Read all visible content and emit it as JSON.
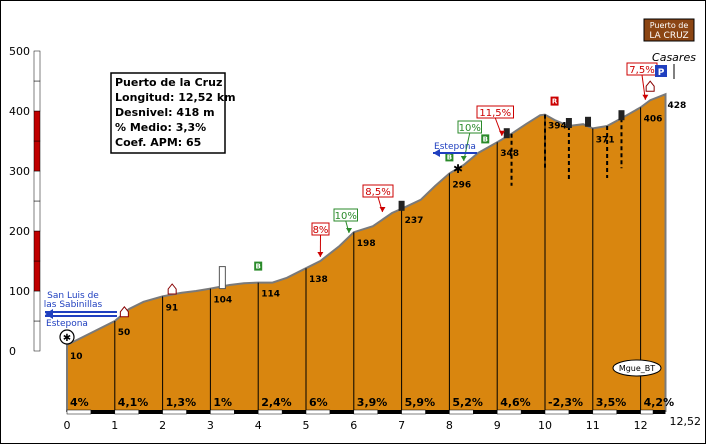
{
  "chart_data": {
    "type": "area",
    "title": "Puerto de LA CRUZ",
    "title_lines": [
      "Puerto de",
      "LA CRUZ"
    ],
    "ylim": [
      0,
      500
    ],
    "xlim": [
      0,
      12.52
    ],
    "y_ticks": [
      0,
      100,
      200,
      300,
      400,
      500
    ],
    "y_tick_labels": [
      "0",
      "100",
      "200",
      "300",
      "400",
      "500"
    ],
    "x_ticks": [
      0,
      1,
      2,
      3,
      4,
      5,
      6,
      7,
      8,
      9,
      10,
      11,
      12,
      12.52
    ],
    "x_tick_labels": [
      "0",
      "1",
      "2",
      "3",
      "4",
      "5",
      "6",
      "7",
      "8",
      "9",
      "10",
      "11",
      "12",
      "12,52"
    ],
    "km_points": [
      0,
      1,
      2,
      3,
      4,
      5,
      6,
      7,
      8,
      9,
      10,
      11,
      12,
      12.52
    ],
    "altitudes": [
      10,
      50,
      91,
      104,
      114,
      138,
      198,
      237,
      296,
      348,
      394,
      371,
      406,
      428
    ],
    "altitude_labels": [
      "10",
      "50",
      "91",
      "104",
      "114",
      "138",
      "198",
      "237",
      "296",
      "348",
      "394",
      "371",
      "406",
      "428"
    ],
    "segment_gradients": [
      "4%",
      "4,1%",
      "1,3%",
      "1%",
      "2,4%",
      "6%",
      "3,9%",
      "5,9%",
      "5,2%",
      "4,6%",
      "-2,3%",
      "3,5%",
      "4,2%"
    ],
    "profile": [
      [
        0,
        10
      ],
      [
        0.5,
        30
      ],
      [
        1,
        50
      ],
      [
        1.3,
        70
      ],
      [
        1.6,
        82
      ],
      [
        2,
        91
      ],
      [
        2.4,
        97
      ],
      [
        2.7,
        100
      ],
      [
        3,
        104
      ],
      [
        3.4,
        110
      ],
      [
        3.7,
        113
      ],
      [
        4,
        114
      ],
      [
        4.3,
        114
      ],
      [
        4.6,
        122
      ],
      [
        5,
        138
      ],
      [
        5.3,
        150
      ],
      [
        5.7,
        175
      ],
      [
        6,
        198
      ],
      [
        6.4,
        208
      ],
      [
        6.8,
        230
      ],
      [
        7,
        237
      ],
      [
        7.4,
        252
      ],
      [
        7.7,
        275
      ],
      [
        8,
        296
      ],
      [
        8.3,
        310
      ],
      [
        8.6,
        330
      ],
      [
        9,
        348
      ],
      [
        9.3,
        362
      ],
      [
        9.6,
        378
      ],
      [
        9.9,
        393
      ],
      [
        10,
        394
      ],
      [
        10.2,
        385
      ],
      [
        10.5,
        375
      ],
      [
        10.8,
        378
      ],
      [
        11,
        371
      ],
      [
        11.3,
        375
      ],
      [
        11.6,
        388
      ],
      [
        12,
        406
      ],
      [
        12.2,
        418
      ],
      [
        12.52,
        428
      ]
    ]
  },
  "info_box": {
    "lines": [
      "Puerto de la Cruz",
      "Longitud: 12,52 km",
      "Desnivel: 418 m",
      "% Medio: 3,3%",
      "Coef. APM: 65"
    ]
  },
  "annotations": {
    "max_gradients": [
      "8%",
      "10%",
      "8,5%",
      "10%",
      "11,5%",
      "7,5%"
    ],
    "start_town": "San Luis de\nlas Sabinillas",
    "start_town_lines": [
      "San Luis de",
      "las Sabinillas"
    ],
    "start_direction": "Estepona",
    "mid_direction": "Estepona",
    "end_town": "Casares",
    "author": "Mgue_BT"
  },
  "colors": {
    "fill": "#d9860f",
    "outline": "#7a7a7a",
    "km_line": "#000000",
    "label_red": "#cc0000",
    "label_green": "#2a8a2a",
    "direction_blue": "#1f3fbf",
    "title_bg": "#8b4513"
  }
}
